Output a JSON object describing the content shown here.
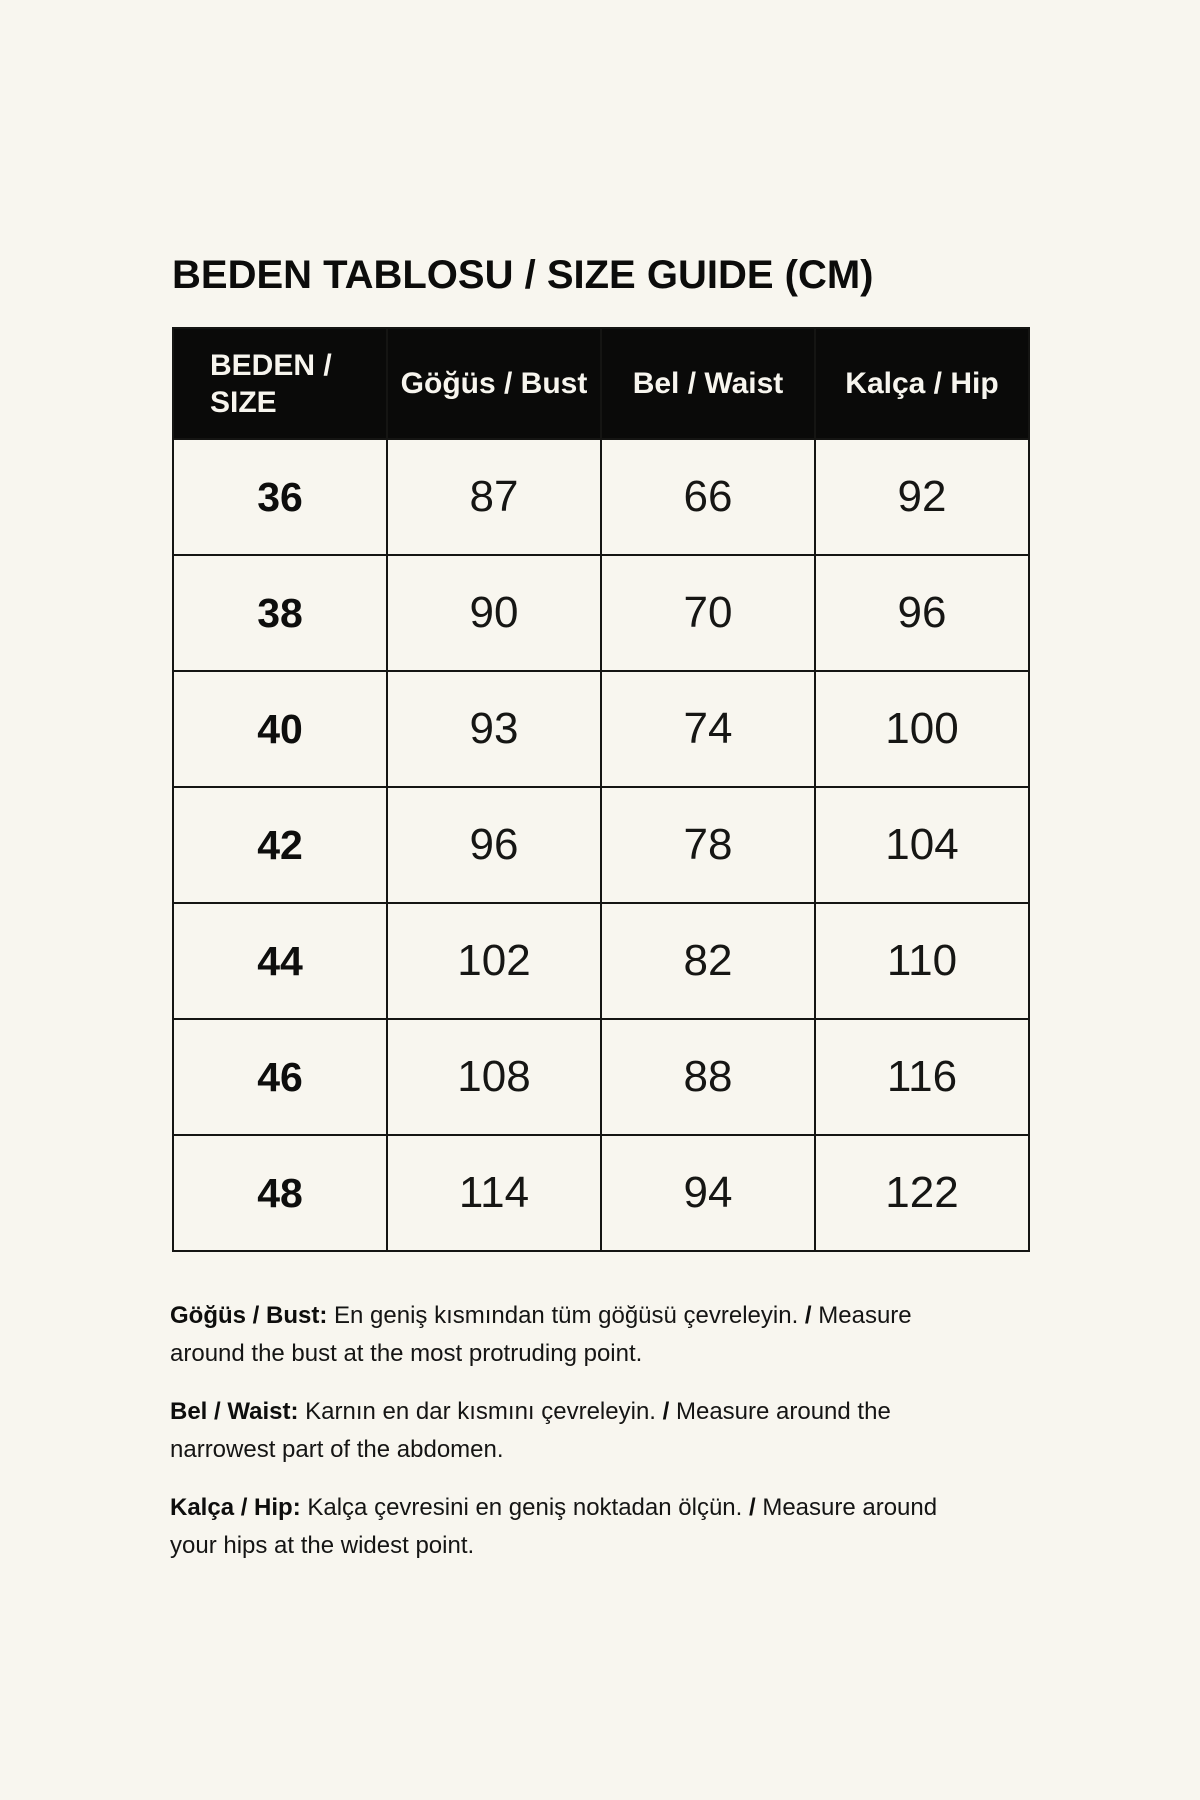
{
  "page": {
    "background_color": "#F8F6EF",
    "header_bg_color": "#0A0A09",
    "header_text_color": "#F7F5EE",
    "border_color": "#151513",
    "text_color": "#131312"
  },
  "title": "BEDEN TABLOSU / SIZE GUIDE (CM)",
  "table": {
    "headers": [
      {
        "line1": "BEDEN /",
        "line2": "SIZE"
      },
      {
        "line1": "Göğüs / Bust"
      },
      {
        "line1": "Bel / Waist"
      },
      {
        "line1": "Kalça / Hip"
      }
    ],
    "rows": [
      {
        "size": "36",
        "bust": "87",
        "waist": "66",
        "hip": "92"
      },
      {
        "size": "38",
        "bust": "90",
        "waist": "70",
        "hip": "96"
      },
      {
        "size": "40",
        "bust": "93",
        "waist": "74",
        "hip": "100"
      },
      {
        "size": "42",
        "bust": "96",
        "waist": "78",
        "hip": "104"
      },
      {
        "size": "44",
        "bust": "102",
        "waist": "82",
        "hip": "110"
      },
      {
        "size": "46",
        "bust": "108",
        "waist": "88",
        "hip": "116"
      },
      {
        "size": "48",
        "bust": "114",
        "waist": "94",
        "hip": "122"
      }
    ]
  },
  "chart_data": {
    "type": "table",
    "title": "BEDEN TABLOSU / SIZE GUIDE (CM)",
    "units": "cm",
    "columns": [
      "BEDEN / SIZE",
      "Göğüs / Bust",
      "Bel / Waist",
      "Kalça / Hip"
    ],
    "rows": [
      [
        36,
        87,
        66,
        92
      ],
      [
        38,
        90,
        70,
        96
      ],
      [
        40,
        93,
        74,
        100
      ],
      [
        42,
        96,
        78,
        104
      ],
      [
        44,
        102,
        82,
        110
      ],
      [
        46,
        108,
        88,
        116
      ],
      [
        48,
        114,
        94,
        122
      ]
    ]
  },
  "notes": [
    {
      "label": "Göğüs / Bust:",
      "tr": " En geniş kısmından tüm göğüsü çevreleyin. ",
      "slash": "/",
      "en": " Measure around the bust at the most protruding point."
    },
    {
      "label": "Bel / Waist:",
      "tr": " Karnın en dar kısmını çevreleyin. ",
      "slash": "/",
      "en": " Measure around the narrowest part of the abdomen."
    },
    {
      "label": "Kalça / Hip:",
      "tr": " Kalça çevresini en geniş noktadan ölçün. ",
      "slash": "/",
      "en": " Measure around your hips at the widest point."
    }
  ]
}
